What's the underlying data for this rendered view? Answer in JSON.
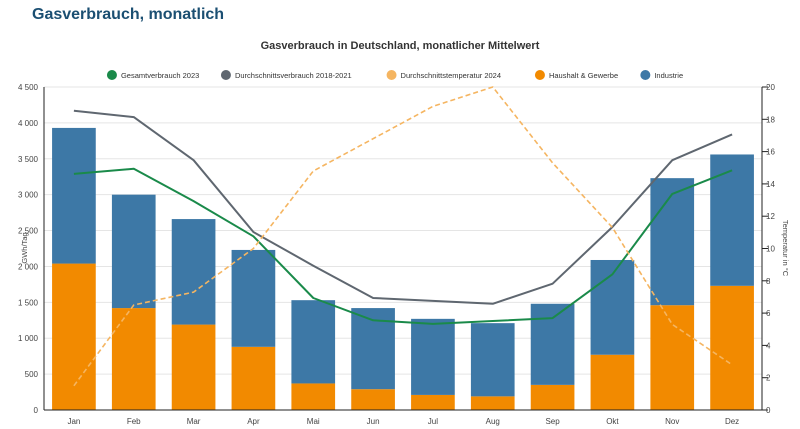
{
  "page": {
    "heading": "Gasverbrauch, monatlich"
  },
  "colors": {
    "haushalt": "#f28a00",
    "industrie": "#3d78a6",
    "gesamt2023": "#1a8a4a",
    "durchschnitt": "#5f6770",
    "temperatur": "#f5b561",
    "grid": "#e5e5e5",
    "axis": "#222222"
  },
  "chart_data": {
    "type": "bar",
    "title": "Gasverbrauch in Deutschland, monatlicher Mittelwert",
    "ylabel": "GWh/Tag",
    "y2label": "Temperatur in °C",
    "ylim": [
      0,
      4500
    ],
    "y2lim": [
      0,
      20
    ],
    "yticks": [
      "0",
      "500",
      "1 000",
      "1 500",
      "2 000",
      "2 500",
      "3 000",
      "3 500",
      "4 000",
      "4 500"
    ],
    "y2ticks": [
      "0",
      "2",
      "4",
      "6",
      "8",
      "10",
      "12",
      "14",
      "16",
      "18",
      "20"
    ],
    "categories": [
      "Jan",
      "Feb",
      "Mar",
      "Apr",
      "Mai",
      "Jun",
      "Jul",
      "Aug",
      "Sep",
      "Okt",
      "Nov",
      "Dez"
    ],
    "legend_position": "top-center",
    "grid": true,
    "series": [
      {
        "name": "Gesamtverbrauch 2023",
        "kind": "line",
        "axis": "left",
        "values": [
          3290,
          3360,
          2910,
          2420,
          1560,
          1250,
          1200,
          1240,
          1280,
          1890,
          3010,
          3340
        ]
      },
      {
        "name": "Durchschnittsverbrauch 2018-2021",
        "kind": "line",
        "axis": "left",
        "values": [
          4170,
          4080,
          3480,
          2480,
          2010,
          1560,
          1520,
          1480,
          1760,
          2550,
          3480,
          3840
        ]
      },
      {
        "name": "Durchschnittstemperatur 2024",
        "kind": "line",
        "axis": "right",
        "values": [
          1.5,
          6.5,
          7.3,
          10.0,
          14.8,
          16.8,
          18.8,
          20.0,
          15.3,
          11.3,
          5.3,
          2.8
        ]
      },
      {
        "name": "Haushalt & Gewerbe",
        "kind": "bar",
        "stack": "total",
        "values": [
          2040,
          1420,
          1190,
          880,
          370,
          290,
          210,
          190,
          350,
          770,
          1460,
          1730
        ]
      },
      {
        "name": "Industrie",
        "kind": "bar",
        "stack": "total",
        "values": [
          1890,
          1580,
          1470,
          1350,
          1160,
          1130,
          1060,
          1020,
          1130,
          1320,
          1770,
          1830
        ]
      }
    ]
  }
}
